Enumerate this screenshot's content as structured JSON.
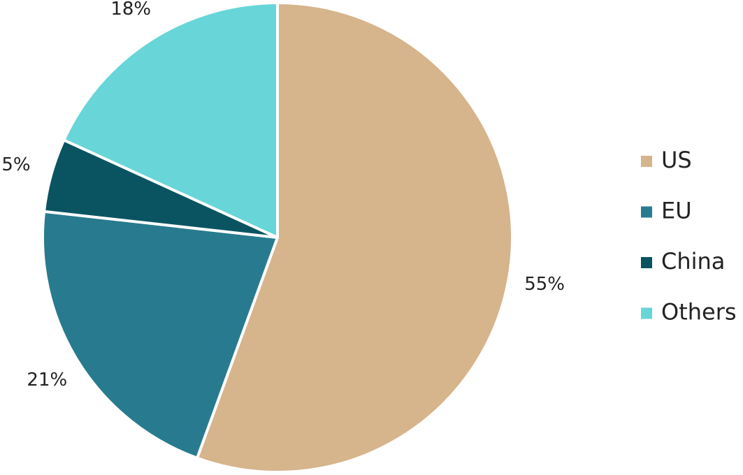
{
  "chart_data": {
    "type": "pie",
    "categories": [
      "US",
      "EU",
      "China",
      "Others"
    ],
    "values": [
      55,
      21,
      5,
      18
    ],
    "value_labels": [
      "55%",
      "21%",
      "5%",
      "18%"
    ],
    "colors": [
      "#d6b48c",
      "#287b8e",
      "#0a5462",
      "#68d5d8"
    ],
    "legend": "right"
  }
}
